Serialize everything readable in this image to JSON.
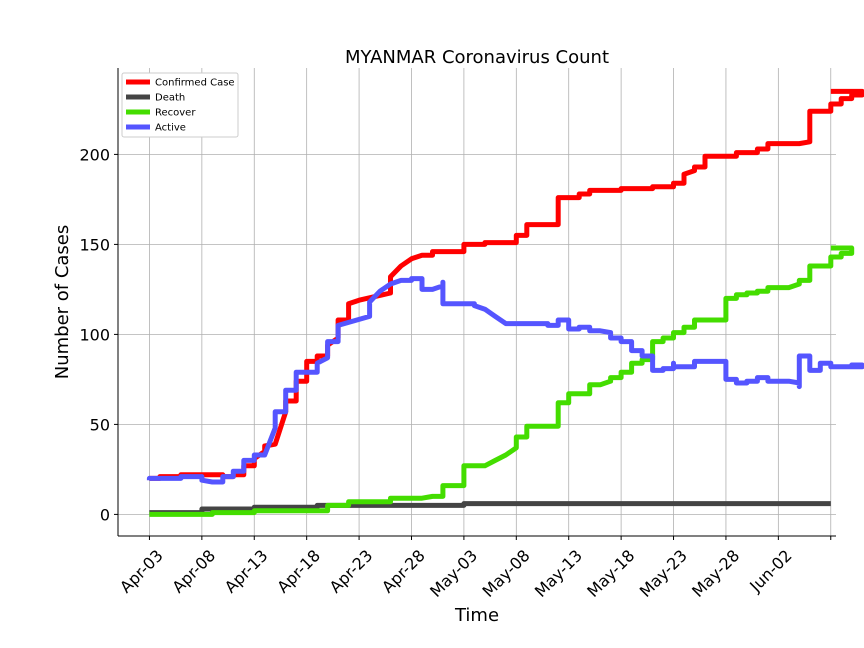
{
  "chart_data": {
    "type": "line",
    "title": "MYANMAR Coronavirus Count",
    "xlabel": "Time",
    "ylabel": "Number of Cases",
    "x_ticks": [
      "Apr-03",
      "Apr-08",
      "Apr-13",
      "Apr-18",
      "Apr-23",
      "Apr-28",
      "May-03",
      "May-08",
      "May-13",
      "May-18",
      "May-23",
      "May-28",
      "Jun-02"
    ],
    "y_ticks": [
      0,
      50,
      100,
      150,
      200
    ],
    "ylim": [
      -12,
      248
    ],
    "xlim_days_from_apr03": [
      -3,
      65.5
    ],
    "grid": true,
    "legend_position": "top-left",
    "series": [
      {
        "name": "Confirmed Case",
        "color": "#ff0000",
        "points": [
          [
            0,
            20
          ],
          [
            1,
            20
          ],
          [
            1,
            21
          ],
          [
            3,
            21
          ],
          [
            3,
            22
          ],
          [
            7,
            22
          ],
          [
            7,
            21
          ],
          [
            8,
            21
          ],
          [
            8,
            22
          ],
          [
            9,
            22
          ],
          [
            9,
            27
          ],
          [
            10,
            27
          ],
          [
            10,
            31
          ],
          [
            11,
            35
          ],
          [
            11,
            38
          ],
          [
            12,
            39
          ],
          [
            13,
            57
          ],
          [
            13,
            63
          ],
          [
            14,
            63
          ],
          [
            14,
            74
          ],
          [
            15,
            74
          ],
          [
            15,
            85
          ],
          [
            16,
            85
          ],
          [
            16,
            88
          ],
          [
            17,
            88
          ],
          [
            17,
            94
          ],
          [
            18,
            98
          ],
          [
            18,
            108
          ],
          [
            19,
            108
          ],
          [
            19,
            117
          ],
          [
            20,
            119
          ],
          [
            23,
            123
          ],
          [
            23,
            132
          ],
          [
            24,
            138
          ],
          [
            25,
            142
          ],
          [
            26,
            144
          ],
          [
            27,
            144
          ],
          [
            27,
            146
          ],
          [
            30,
            146
          ],
          [
            30,
            150
          ],
          [
            32,
            150
          ],
          [
            32,
            151
          ],
          [
            35,
            151
          ],
          [
            35,
            155
          ],
          [
            36,
            155
          ],
          [
            36,
            161
          ],
          [
            39,
            161
          ],
          [
            39,
            176
          ],
          [
            41,
            176
          ],
          [
            41,
            178
          ],
          [
            42,
            178
          ],
          [
            42,
            180
          ],
          [
            45,
            180
          ],
          [
            45,
            181
          ],
          [
            48,
            181
          ],
          [
            48,
            182
          ],
          [
            50,
            182
          ],
          [
            50,
            184
          ],
          [
            51,
            184
          ],
          [
            51,
            189
          ],
          [
            52,
            191
          ],
          [
            52,
            193
          ],
          [
            53,
            193
          ],
          [
            53,
            199
          ],
          [
            56,
            199
          ],
          [
            56,
            201
          ],
          [
            58,
            201
          ],
          [
            58,
            203
          ],
          [
            59,
            203
          ],
          [
            59,
            206
          ],
          [
            62,
            206
          ],
          [
            63,
            207
          ],
          [
            63,
            224
          ],
          [
            65,
            224
          ],
          [
            65,
            228
          ],
          [
            66,
            228
          ],
          [
            66,
            231
          ],
          [
            67,
            231
          ],
          [
            67,
            233
          ],
          [
            68,
            233
          ],
          [
            68,
            235
          ],
          [
            65,
            235
          ]
        ]
      },
      {
        "name": "Death",
        "color": "#444444",
        "points": [
          [
            0,
            1
          ],
          [
            5,
            1
          ],
          [
            5,
            3
          ],
          [
            10,
            3
          ],
          [
            10,
            4
          ],
          [
            14,
            4
          ],
          [
            16,
            4
          ],
          [
            16,
            5
          ],
          [
            26,
            5
          ],
          [
            26,
            5
          ],
          [
            30,
            5
          ],
          [
            30,
            6
          ],
          [
            65,
            6
          ]
        ]
      },
      {
        "name": "Recover",
        "color": "#44dd00",
        "points": [
          [
            0,
            0
          ],
          [
            6,
            0
          ],
          [
            6,
            1
          ],
          [
            10,
            1
          ],
          [
            10,
            2
          ],
          [
            17,
            2
          ],
          [
            17,
            5
          ],
          [
            19,
            5
          ],
          [
            19,
            7
          ],
          [
            23,
            7
          ],
          [
            23,
            9
          ],
          [
            26,
            9
          ],
          [
            27,
            10
          ],
          [
            28,
            10
          ],
          [
            28,
            16
          ],
          [
            30,
            16
          ],
          [
            30,
            27
          ],
          [
            32,
            27
          ],
          [
            33,
            30
          ],
          [
            34,
            33
          ],
          [
            35,
            37
          ],
          [
            35,
            43
          ],
          [
            36,
            43
          ],
          [
            36,
            49
          ],
          [
            39,
            49
          ],
          [
            39,
            50
          ],
          [
            39,
            62
          ],
          [
            40,
            62
          ],
          [
            40,
            67
          ],
          [
            42,
            67
          ],
          [
            42,
            72
          ],
          [
            43,
            72
          ],
          [
            44,
            74
          ],
          [
            44,
            76
          ],
          [
            45,
            76
          ],
          [
            45,
            79
          ],
          [
            46,
            79
          ],
          [
            46,
            84
          ],
          [
            47,
            84
          ],
          [
            47,
            86
          ],
          [
            48,
            86
          ],
          [
            48,
            96
          ],
          [
            49,
            96
          ],
          [
            49,
            98
          ],
          [
            50,
            98
          ],
          [
            50,
            101
          ],
          [
            51,
            101
          ],
          [
            51,
            104
          ],
          [
            52,
            104
          ],
          [
            52,
            108
          ],
          [
            55,
            108
          ],
          [
            55,
            120
          ],
          [
            56,
            120
          ],
          [
            56,
            122
          ],
          [
            57,
            122
          ],
          [
            57,
            123
          ],
          [
            58,
            123
          ],
          [
            58,
            124
          ],
          [
            59,
            124
          ],
          [
            59,
            126
          ],
          [
            61,
            126
          ],
          [
            62,
            128
          ],
          [
            62,
            130
          ],
          [
            63,
            130
          ],
          [
            63,
            138
          ],
          [
            65,
            138
          ],
          [
            65,
            143
          ],
          [
            66,
            143
          ],
          [
            66,
            145
          ],
          [
            67,
            145
          ],
          [
            67,
            148
          ],
          [
            65,
            148
          ]
        ]
      },
      {
        "name": "Active",
        "color": "#5555ff",
        "points": [
          [
            0,
            19
          ],
          [
            0,
            20
          ],
          [
            3,
            20
          ],
          [
            3,
            21
          ],
          [
            5,
            21
          ],
          [
            5,
            19
          ],
          [
            6,
            18
          ],
          [
            7,
            18
          ],
          [
            7,
            21
          ],
          [
            8,
            21
          ],
          [
            8,
            24
          ],
          [
            9,
            24
          ],
          [
            9,
            30
          ],
          [
            10,
            30
          ],
          [
            10,
            33
          ],
          [
            11,
            33
          ],
          [
            12,
            48
          ],
          [
            12,
            57
          ],
          [
            13,
            57
          ],
          [
            13,
            69
          ],
          [
            14,
            69
          ],
          [
            14,
            79
          ],
          [
            16,
            79
          ],
          [
            16,
            84
          ],
          [
            17,
            87
          ],
          [
            17,
            96
          ],
          [
            18,
            96
          ],
          [
            18,
            105
          ],
          [
            21,
            110
          ],
          [
            21,
            118
          ],
          [
            22,
            124
          ],
          [
            23,
            128
          ],
          [
            24,
            130
          ],
          [
            25,
            130
          ],
          [
            25,
            131
          ],
          [
            26,
            131
          ],
          [
            26,
            125
          ],
          [
            27,
            125
          ],
          [
            28,
            127
          ],
          [
            28,
            129
          ],
          [
            28,
            117
          ],
          [
            31,
            117
          ],
          [
            31,
            116
          ],
          [
            32,
            114
          ],
          [
            33,
            110
          ],
          [
            34,
            106
          ],
          [
            38,
            106
          ],
          [
            38,
            105
          ],
          [
            39,
            105
          ],
          [
            39,
            108
          ],
          [
            40,
            108
          ],
          [
            40,
            103
          ],
          [
            41,
            103
          ],
          [
            41,
            104
          ],
          [
            42,
            104
          ],
          [
            42,
            102
          ],
          [
            43,
            102
          ],
          [
            44,
            101
          ],
          [
            44,
            98
          ],
          [
            45,
            98
          ],
          [
            45,
            96
          ],
          [
            46,
            96
          ],
          [
            46,
            91
          ],
          [
            47,
            91
          ],
          [
            47,
            88
          ],
          [
            48,
            88
          ],
          [
            48,
            80
          ],
          [
            49,
            80
          ],
          [
            49,
            81
          ],
          [
            50,
            81
          ],
          [
            50,
            84
          ],
          [
            50,
            82
          ],
          [
            52,
            82
          ],
          [
            52,
            85
          ],
          [
            55,
            85
          ],
          [
            55,
            75
          ],
          [
            56,
            75
          ],
          [
            56,
            73
          ],
          [
            57,
            73
          ],
          [
            57,
            74
          ],
          [
            58,
            74
          ],
          [
            58,
            76
          ],
          [
            59,
            76
          ],
          [
            59,
            74
          ],
          [
            61,
            74
          ],
          [
            62,
            73
          ],
          [
            62,
            71
          ],
          [
            62,
            88
          ],
          [
            63,
            88
          ],
          [
            63,
            80
          ],
          [
            64,
            80
          ],
          [
            64,
            84
          ],
          [
            65,
            84
          ],
          [
            65,
            82
          ],
          [
            67,
            82
          ],
          [
            67,
            83
          ],
          [
            68,
            83
          ],
          [
            68,
            82
          ],
          [
            65,
            82
          ]
        ]
      }
    ]
  }
}
